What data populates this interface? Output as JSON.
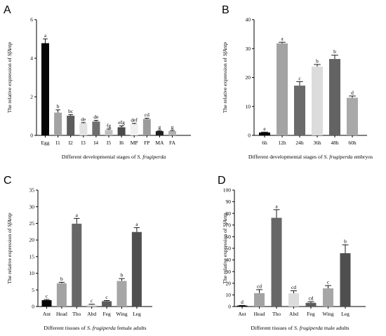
{
  "chart_data": [
    {
      "panel": "A",
      "type": "bar",
      "ylabel": "The relative expression of SfAntp",
      "xlabel": "Different developmental stages of S. frugiperda",
      "ylim": [
        0,
        6
      ],
      "yticks": [
        0,
        2,
        4,
        6
      ],
      "categories": [
        "Egg",
        "I1",
        "I2",
        "I3",
        "I4",
        "I5",
        "I6",
        "MP",
        "FP",
        "MA",
        "FA"
      ],
      "values": [
        4.78,
        1.18,
        1.02,
        0.62,
        0.72,
        0.28,
        0.42,
        0.58,
        0.85,
        0.22,
        0.22
      ],
      "errors": [
        0.22,
        0.14,
        0.06,
        0.04,
        0.06,
        0.05,
        0.07,
        0.04,
        0.04,
        0.03,
        0.03
      ],
      "letters": [
        "a",
        "b",
        "bc",
        "de",
        "de",
        "fg",
        "efg",
        "def",
        "cd",
        "g",
        "g"
      ],
      "colors": [
        "#050505",
        "#a3a3a3",
        "#5c5c5c",
        "#e2e2e2",
        "#6e6e6e",
        "#c0c0c0",
        "#4a4a4a",
        "#f0f0f0",
        "#9b9b9b",
        "#1e1e1e",
        "#b2b2b2"
      ]
    },
    {
      "panel": "B",
      "type": "bar",
      "ylabel": "The relative expression of SfAntp",
      "xlabel": "Different developmental stages of S. frugiperda embryos",
      "ylim": [
        0,
        40
      ],
      "yticks": [
        0,
        10,
        20,
        30,
        40
      ],
      "categories": [
        "6h",
        "12h",
        "24h",
        "36h",
        "48h",
        "60h"
      ],
      "values": [
        1.0,
        31.8,
        17.2,
        23.8,
        26.4,
        13.0
      ],
      "errors": [
        0.15,
        0.4,
        1.4,
        0.7,
        1.3,
        0.6
      ],
      "letters": [
        "e",
        "a",
        "c",
        "b",
        "b",
        "d"
      ],
      "colors": [
        "#050505",
        "#a3a3a3",
        "#6a6a6a",
        "#dcdcdc",
        "#636363",
        "#a9a9a9"
      ]
    },
    {
      "panel": "C",
      "type": "bar",
      "ylabel": "The relative expression of SfAntp",
      "xlabel": "Different tissues of S. frugiperda female adults",
      "ylim": [
        0,
        35
      ],
      "yticks": [
        0,
        5,
        10,
        15,
        20,
        25,
        30,
        35
      ],
      "categories": [
        "Ant",
        "Head",
        "Tho",
        "Abd",
        "Feg",
        "Wing",
        "Leg"
      ],
      "values": [
        1.9,
        7.0,
        24.9,
        0.6,
        1.6,
        7.7,
        22.4
      ],
      "errors": [
        0.2,
        0.3,
        1.6,
        0.1,
        0.2,
        0.7,
        1.3
      ],
      "letters": [
        "c",
        "b",
        "a",
        "c",
        "c",
        "b",
        "a"
      ],
      "colors": [
        "#050505",
        "#a3a3a3",
        "#676767",
        "#dcdcdc",
        "#5c5c5c",
        "#a6a6a6",
        "#4f4f4f"
      ]
    },
    {
      "panel": "D",
      "type": "bar",
      "ylabel": "The relative expression of SfAntp",
      "xlabel": "Different tissues of S. frugiperda male adults",
      "ylim": [
        0,
        100
      ],
      "yticks": [
        0,
        10,
        20,
        30,
        40,
        50,
        60,
        70,
        80,
        90,
        100
      ],
      "categories": [
        "Ant",
        "Head",
        "Tho",
        "Abd",
        "Feg",
        "Wing",
        "Leg"
      ],
      "values": [
        0.8,
        11.5,
        76.2,
        11.3,
        3.2,
        15.6,
        45.8
      ],
      "errors": [
        0.2,
        3.0,
        7.0,
        2.2,
        1.0,
        2.4,
        7.2
      ],
      "letters": [
        "d",
        "cd",
        "a",
        "cd",
        "cd",
        "c",
        "b"
      ],
      "colors": [
        "#050505",
        "#a3a3a3",
        "#676767",
        "#dcdcdc",
        "#5c5c5c",
        "#a6a6a6",
        "#4f4f4f"
      ]
    }
  ]
}
